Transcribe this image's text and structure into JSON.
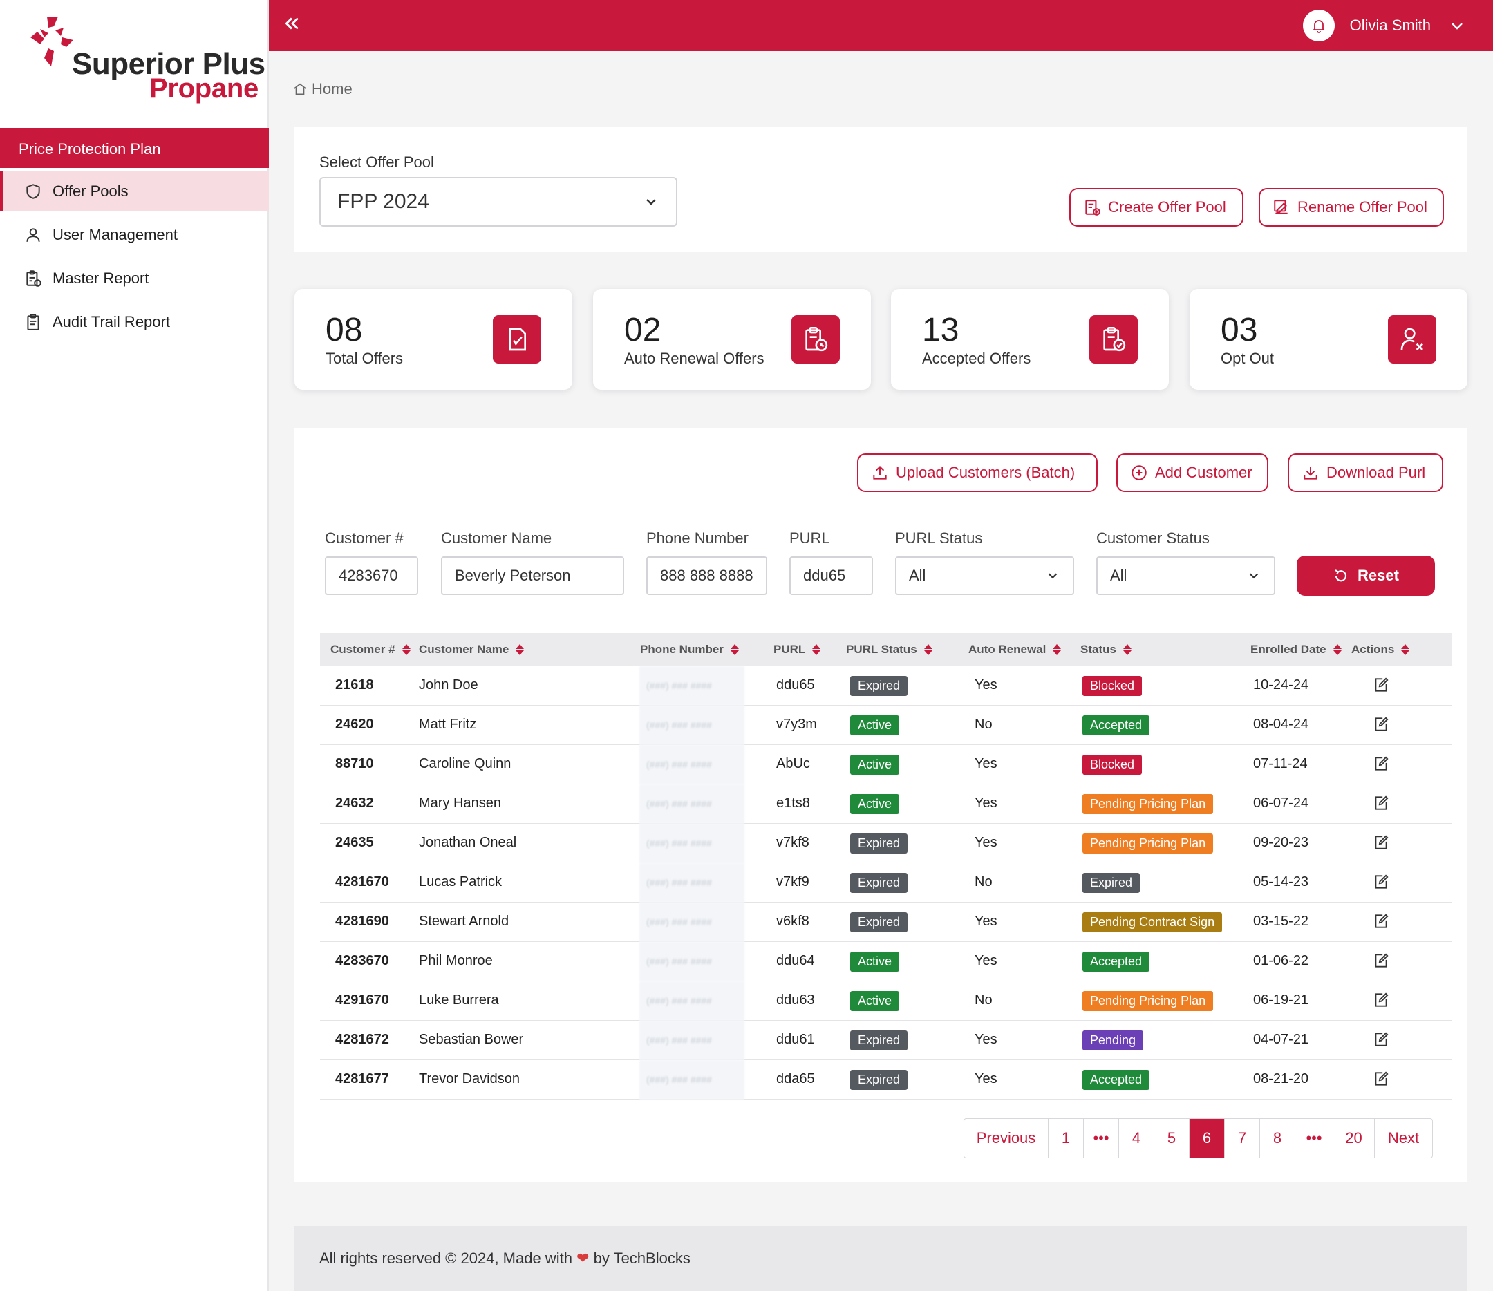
{
  "brand": {
    "line1": "Superior Plus",
    "line2": "Propane"
  },
  "sidebar": {
    "section": "Price Protection Plan",
    "items": [
      {
        "label": "Offer Pools",
        "icon": "shield-icon",
        "active": true
      },
      {
        "label": "User Management",
        "icon": "user-icon",
        "active": false
      },
      {
        "label": "Master Report",
        "icon": "report-icon",
        "active": false
      },
      {
        "label": "Audit Trail Report",
        "icon": "clipboard-icon",
        "active": false
      }
    ]
  },
  "header": {
    "user_name": "Olivia Smith"
  },
  "breadcrumb": {
    "home": "Home"
  },
  "pool": {
    "label": "Select Offer Pool",
    "selected": "FPP 2024",
    "create_label": "Create Offer Pool",
    "rename_label": "Rename Offer Pool"
  },
  "stats": [
    {
      "value": "08",
      "label": "Total Offers",
      "icon": "document-check-icon"
    },
    {
      "value": "02",
      "label": "Auto Renewal Offers",
      "icon": "clipboard-clock-icon"
    },
    {
      "value": "13",
      "label": "Accepted Offers",
      "icon": "clipboard-check-icon"
    },
    {
      "value": "03",
      "label": "Opt Out",
      "icon": "user-x-icon"
    }
  ],
  "actions": {
    "upload_label": "Upload Customers (Batch)",
    "add_label": "Add Customer",
    "download_label": "Download Purl"
  },
  "filters": {
    "customer_no": {
      "label": "Customer #",
      "value": "4283670"
    },
    "customer_name": {
      "label": "Customer Name",
      "value": "Beverly Peterson"
    },
    "phone": {
      "label": "Phone Number",
      "value": "888 888 8888"
    },
    "purl": {
      "label": "PURL",
      "value": "ddu65"
    },
    "purl_status": {
      "label": "PURL Status",
      "value": "All"
    },
    "customer_status": {
      "label": "Customer Status",
      "value": "All"
    },
    "reset_label": "Reset"
  },
  "table": {
    "columns": [
      "Customer #",
      "Customer Name",
      "Phone Number",
      "PURL",
      "PURL Status",
      "Auto Renewal",
      "Status",
      "Enrolled Date",
      "Actions"
    ],
    "rows": [
      {
        "id": "21618",
        "name": "John Doe",
        "phone": "(###) ### ####",
        "purl": "ddu65",
        "purl_status": "Expired",
        "auto": "Yes",
        "status": "Blocked",
        "date": "10-24-24"
      },
      {
        "id": "24620",
        "name": "Matt Fritz",
        "phone": "(###) ### ####",
        "purl": "v7y3m",
        "purl_status": "Active",
        "auto": "No",
        "status": "Accepted",
        "date": "08-04-24"
      },
      {
        "id": "88710",
        "name": "Caroline Quinn",
        "phone": "(###) ### ####",
        "purl": "AbUc",
        "purl_status": "Active",
        "auto": "Yes",
        "status": "Blocked",
        "date": "07-11-24"
      },
      {
        "id": "24632",
        "name": "Mary Hansen",
        "phone": "(###) ### ####",
        "purl": "e1ts8",
        "purl_status": "Active",
        "auto": "Yes",
        "status": "Pending Pricing Plan",
        "date": "06-07-24"
      },
      {
        "id": "24635",
        "name": "Jonathan Oneal",
        "phone": "(###) ### ####",
        "purl": "v7kf8",
        "purl_status": "Expired",
        "auto": "Yes",
        "status": "Pending Pricing Plan",
        "date": "09-20-23"
      },
      {
        "id": "4281670",
        "name": "Lucas Patrick",
        "phone": "(###) ### ####",
        "purl": "v7kf9",
        "purl_status": "Expired",
        "auto": "No",
        "status": "Expired",
        "date": "05-14-23"
      },
      {
        "id": "4281690",
        "name": "Stewart Arnold",
        "phone": "(###) ### ####",
        "purl": "v6kf8",
        "purl_status": "Expired",
        "auto": "Yes",
        "status": "Pending Contract Sign",
        "date": "03-15-22"
      },
      {
        "id": "4283670",
        "name": "Phil Monroe",
        "phone": "(###) ### ####",
        "purl": "ddu64",
        "purl_status": "Active",
        "auto": "Yes",
        "status": "Accepted",
        "date": "01-06-22"
      },
      {
        "id": "4291670",
        "name": "Luke Burrera",
        "phone": "(###) ### ####",
        "purl": "ddu63",
        "purl_status": "Active",
        "auto": "No",
        "status": "Pending Pricing Plan",
        "date": "06-19-21"
      },
      {
        "id": "4281672",
        "name": "Sebastian Bower",
        "phone": "(###) ### ####",
        "purl": "ddu61",
        "purl_status": "Expired",
        "auto": "Yes",
        "status": "Pending",
        "date": "04-07-21"
      },
      {
        "id": "4281677",
        "name": "Trevor Davidson",
        "phone": "(###) ### ####",
        "purl": "dda65",
        "purl_status": "Expired",
        "auto": "Yes",
        "status": "Accepted",
        "date": "08-21-20"
      }
    ]
  },
  "status_colors": {
    "Expired": "#555a60",
    "Active": "#1e8a3a",
    "Blocked": "#c8183b",
    "Accepted": "#1e8a3a",
    "Pending Pricing Plan": "#ef7d22",
    "Pending Contract Sign": "#a97d12",
    "Pending": "#6b3fb5"
  },
  "pagination": {
    "previous": "Previous",
    "next": "Next",
    "pages": [
      "1",
      "•••",
      "4",
      "5",
      "6",
      "7",
      "8",
      "•••",
      "20"
    ],
    "current": "6"
  },
  "footer": {
    "prefix": "All rights reserved © 2024, Made with",
    "heart": "❤",
    "suffix": "by TechBlocks"
  },
  "colors": {
    "accent": "#c8183b",
    "active_nav_bg": "#f7dde1"
  }
}
